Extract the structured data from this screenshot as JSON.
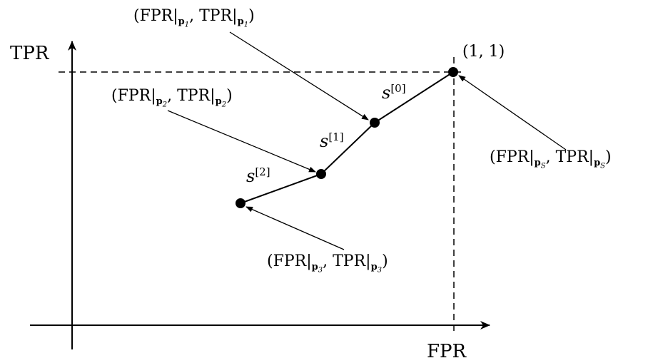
{
  "axes": {
    "x_label": "FPR",
    "y_label": "TPR"
  },
  "corner_label": "(1, 1)",
  "points": [
    {
      "id": "pS",
      "label_fpr": "FPR",
      "label_tpr": "TPR",
      "sub": "p",
      "subsub": "S"
    },
    {
      "id": "p1",
      "label_fpr": "FPR",
      "label_tpr": "TPR",
      "sub": "p",
      "subsub": "1"
    },
    {
      "id": "p2",
      "label_fpr": "FPR",
      "label_tpr": "TPR",
      "sub": "p",
      "subsub": "2"
    },
    {
      "id": "p3",
      "label_fpr": "FPR",
      "label_tpr": "TPR",
      "sub": "p",
      "subsub": "3"
    }
  ],
  "segments": [
    {
      "id": "s0",
      "base": "s",
      "sup": "[0]"
    },
    {
      "id": "s1",
      "base": "s",
      "sup": "[1]"
    },
    {
      "id": "s2",
      "base": "s",
      "sup": "[2]"
    }
  ],
  "colors": {
    "ink": "#000000",
    "background": "#ffffff"
  }
}
